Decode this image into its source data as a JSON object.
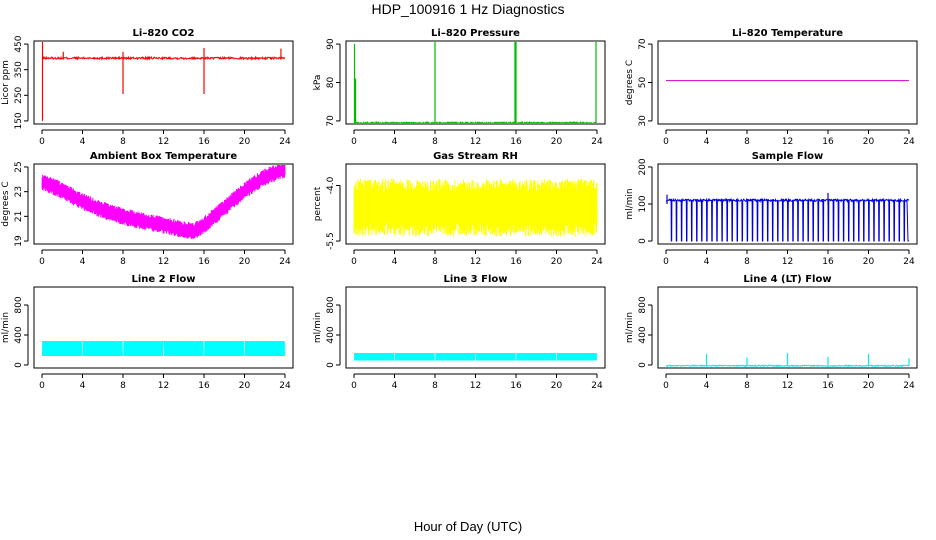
{
  "figure": {
    "title": "HDP_100916  1 Hz Diagnostics",
    "xlabel": "Hour of Day (UTC)"
  },
  "chart_data": [
    {
      "id": "li820-co2",
      "type": "line",
      "title": "Li–820 CO2",
      "ylabel": "Licor ppm",
      "color": "#ff0000",
      "xlim": [
        0,
        24
      ],
      "ylim": [
        150,
        450
      ],
      "xticks": [
        "0",
        "4",
        "8",
        "12",
        "16",
        "20",
        "24"
      ],
      "yticks": [
        "150",
        "250",
        "350",
        "450"
      ],
      "baseline": 395,
      "noise": 4,
      "spikes": [
        {
          "x": 0.05,
          "lo": 150,
          "hi": 460
        },
        {
          "x": 2.1,
          "lo": 390,
          "hi": 420
        },
        {
          "x": 8.0,
          "lo": 255,
          "hi": 420
        },
        {
          "x": 16.0,
          "lo": 255,
          "hi": 435
        },
        {
          "x": 23.6,
          "lo": 390,
          "hi": 432
        }
      ]
    },
    {
      "id": "li820-pressure",
      "type": "line",
      "title": "Li–820 Pressure",
      "ylabel": "kPa",
      "color": "#00bb00",
      "xlim": [
        0,
        24
      ],
      "ylim": [
        70,
        90
      ],
      "xticks": [
        "0",
        "4",
        "8",
        "12",
        "16",
        "20",
        "24"
      ],
      "yticks": [
        "70",
        "80",
        "90"
      ],
      "baseline": 69.5,
      "noise": 0.2,
      "spikes": [
        {
          "x": 0.05,
          "lo": 69,
          "hi": 90
        },
        {
          "x": 0.15,
          "lo": 69,
          "hi": 81
        },
        {
          "x": 8.0,
          "lo": 69,
          "hi": 92
        },
        {
          "x": 15.9,
          "lo": 69,
          "hi": 92
        },
        {
          "x": 16.0,
          "lo": 69,
          "hi": 92
        },
        {
          "x": 23.9,
          "lo": 69,
          "hi": 92
        }
      ]
    },
    {
      "id": "li820-temperature",
      "type": "line",
      "title": "Li–820 Temperature",
      "ylabel": "degrees C",
      "color": "#cc00cc",
      "xlim": [
        0,
        24
      ],
      "ylim": [
        30,
        70
      ],
      "xticks": [
        "0",
        "4",
        "8",
        "12",
        "16",
        "20",
        "24"
      ],
      "yticks": [
        "30",
        "50",
        "70"
      ],
      "baseline": 51,
      "noise": 0,
      "spikes": []
    },
    {
      "id": "ambient-box-temperature",
      "type": "line",
      "title": "Ambient Box Temperature",
      "ylabel": "degrees C",
      "color": "#ff00ff",
      "xlim": [
        0,
        24
      ],
      "ylim": [
        19,
        25
      ],
      "xticks": [
        "0",
        "4",
        "8",
        "12",
        "16",
        "20",
        "24"
      ],
      "yticks": [
        "19",
        "21",
        "23",
        "25"
      ],
      "curve_x": [
        0,
        2,
        4,
        6,
        8,
        10,
        12,
        14,
        15,
        16,
        18,
        20,
        22,
        24
      ],
      "curve_y": [
        23.8,
        23.1,
        22.2,
        21.5,
        21.0,
        20.6,
        20.3,
        19.9,
        19.8,
        20.3,
        21.7,
        23.1,
        24.2,
        24.8
      ],
      "band": 0.7,
      "spikes": []
    },
    {
      "id": "gas-stream-rh",
      "type": "line",
      "title": "Gas Stream RH",
      "ylabel": "percent",
      "color": "#ffff00",
      "xlim": [
        0,
        24
      ],
      "ylim": [
        -5.5,
        -3.5
      ],
      "xticks": [
        "0",
        "4",
        "8",
        "12",
        "16",
        "20",
        "24"
      ],
      "yticks": [
        "-5.5",
        "-4.0"
      ],
      "baseline": -4.6,
      "band": 0.65,
      "spikes": []
    },
    {
      "id": "sample-flow",
      "type": "line",
      "title": "Sample Flow",
      "ylabel": "ml/min",
      "color": "#0000dd",
      "xlim": [
        0,
        24
      ],
      "ylim": [
        0,
        200
      ],
      "xticks": [
        "0",
        "4",
        "8",
        "12",
        "16",
        "20",
        "24"
      ],
      "yticks": [
        "0",
        "100",
        "200"
      ],
      "baseline": 110,
      "noise": 3,
      "dropout_every": 0.5,
      "dropout_to": 0,
      "spikes": [
        {
          "x": 0.1,
          "lo": 100,
          "hi": 125
        },
        {
          "x": 16.0,
          "lo": 100,
          "hi": 130
        }
      ]
    },
    {
      "id": "line-2-flow",
      "type": "line",
      "title": "Line 2 Flow",
      "ylabel": "ml/min",
      "color": "#00ffff",
      "xlim": [
        0,
        24
      ],
      "ylim": [
        0,
        1000
      ],
      "xticks": [
        "0",
        "4",
        "8",
        "12",
        "16",
        "20",
        "24"
      ],
      "yticks": [
        "0",
        "400",
        "800"
      ],
      "band_lo": 120,
      "band_hi": 320,
      "gaps": [
        4,
        8,
        12,
        16,
        20
      ],
      "spikes": []
    },
    {
      "id": "line-3-flow",
      "type": "line",
      "title": "Line 3 Flow",
      "ylabel": "ml/min",
      "color": "#00ffff",
      "xlim": [
        0,
        24
      ],
      "ylim": [
        0,
        1000
      ],
      "xticks": [
        "0",
        "4",
        "8",
        "12",
        "16",
        "20",
        "24"
      ],
      "yticks": [
        "0",
        "400",
        "800"
      ],
      "band_lo": 60,
      "band_hi": 160,
      "gaps": [
        4,
        8,
        12,
        16,
        20
      ],
      "spikes": []
    },
    {
      "id": "line-4-lt-flow",
      "type": "line",
      "title": "Line 4 (LT) Flow",
      "ylabel": "ml/min",
      "color": "#00eeee",
      "xlim": [
        0,
        24
      ],
      "ylim": [
        0,
        1000
      ],
      "xticks": [
        "0",
        "4",
        "8",
        "12",
        "16",
        "20",
        "24"
      ],
      "yticks": [
        "0",
        "400",
        "800"
      ],
      "baseline": -10,
      "noise": 8,
      "spikes": [
        {
          "x": 4.0,
          "lo": -10,
          "hi": 150
        },
        {
          "x": 8.0,
          "lo": -10,
          "hi": 100
        },
        {
          "x": 12.0,
          "lo": -10,
          "hi": 160
        },
        {
          "x": 16.0,
          "lo": -10,
          "hi": 110
        },
        {
          "x": 20.0,
          "lo": -10,
          "hi": 150
        },
        {
          "x": 24.0,
          "lo": -10,
          "hi": 90
        }
      ]
    }
  ]
}
